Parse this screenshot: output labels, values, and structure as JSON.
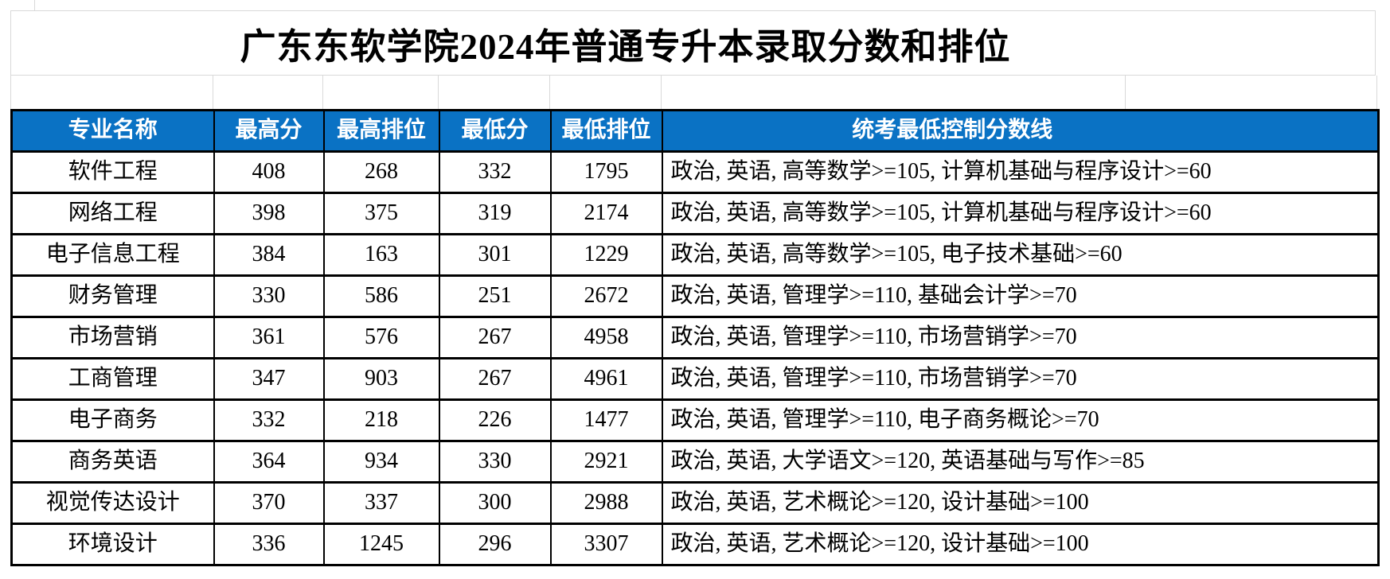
{
  "title": "广东东软学院2024年普通专升本录取分数和排位",
  "colors": {
    "header_bg": "#0a72c4",
    "header_text": "#ffffff",
    "border": "#000000",
    "gridline": "#d9d9d9"
  },
  "table": {
    "columns": [
      "专业名称",
      "最高分",
      "最高排位",
      "最低分",
      "最低排位",
      "统考最低控制分数线"
    ],
    "rows": [
      {
        "major": "软件工程",
        "max_score": "408",
        "max_rank": "268",
        "min_score": "332",
        "min_rank": "1795",
        "cutoff": "政治, 英语, 高等数学>=105, 计算机基础与程序设计>=60"
      },
      {
        "major": "网络工程",
        "max_score": "398",
        "max_rank": "375",
        "min_score": "319",
        "min_rank": "2174",
        "cutoff": "政治, 英语, 高等数学>=105, 计算机基础与程序设计>=60"
      },
      {
        "major": "电子信息工程",
        "max_score": "384",
        "max_rank": "163",
        "min_score": "301",
        "min_rank": "1229",
        "cutoff": "政治, 英语, 高等数学>=105, 电子技术基础>=60"
      },
      {
        "major": "财务管理",
        "max_score": "330",
        "max_rank": "586",
        "min_score": "251",
        "min_rank": "2672",
        "cutoff": "政治, 英语, 管理学>=110, 基础会计学>=70"
      },
      {
        "major": "市场营销",
        "max_score": "361",
        "max_rank": "576",
        "min_score": "267",
        "min_rank": "4958",
        "cutoff": "政治, 英语, 管理学>=110, 市场营销学>=70"
      },
      {
        "major": "工商管理",
        "max_score": "347",
        "max_rank": "903",
        "min_score": "267",
        "min_rank": "4961",
        "cutoff": "政治, 英语, 管理学>=110, 市场营销学>=70"
      },
      {
        "major": "电子商务",
        "max_score": "332",
        "max_rank": "218",
        "min_score": "226",
        "min_rank": "1477",
        "cutoff": "政治, 英语, 管理学>=110, 电子商务概论>=70"
      },
      {
        "major": "商务英语",
        "max_score": "364",
        "max_rank": "934",
        "min_score": "330",
        "min_rank": "2921",
        "cutoff": "政治, 英语, 大学语文>=120, 英语基础与写作>=85"
      },
      {
        "major": "视觉传达设计",
        "max_score": "370",
        "max_rank": "337",
        "min_score": "300",
        "min_rank": "2988",
        "cutoff": "政治, 英语, 艺术概论>=120, 设计基础>=100"
      },
      {
        "major": "环境设计",
        "max_score": "336",
        "max_rank": "1245",
        "min_score": "296",
        "min_rank": "3307",
        "cutoff": "政治, 英语, 艺术概论>=120, 设计基础>=100"
      }
    ]
  }
}
